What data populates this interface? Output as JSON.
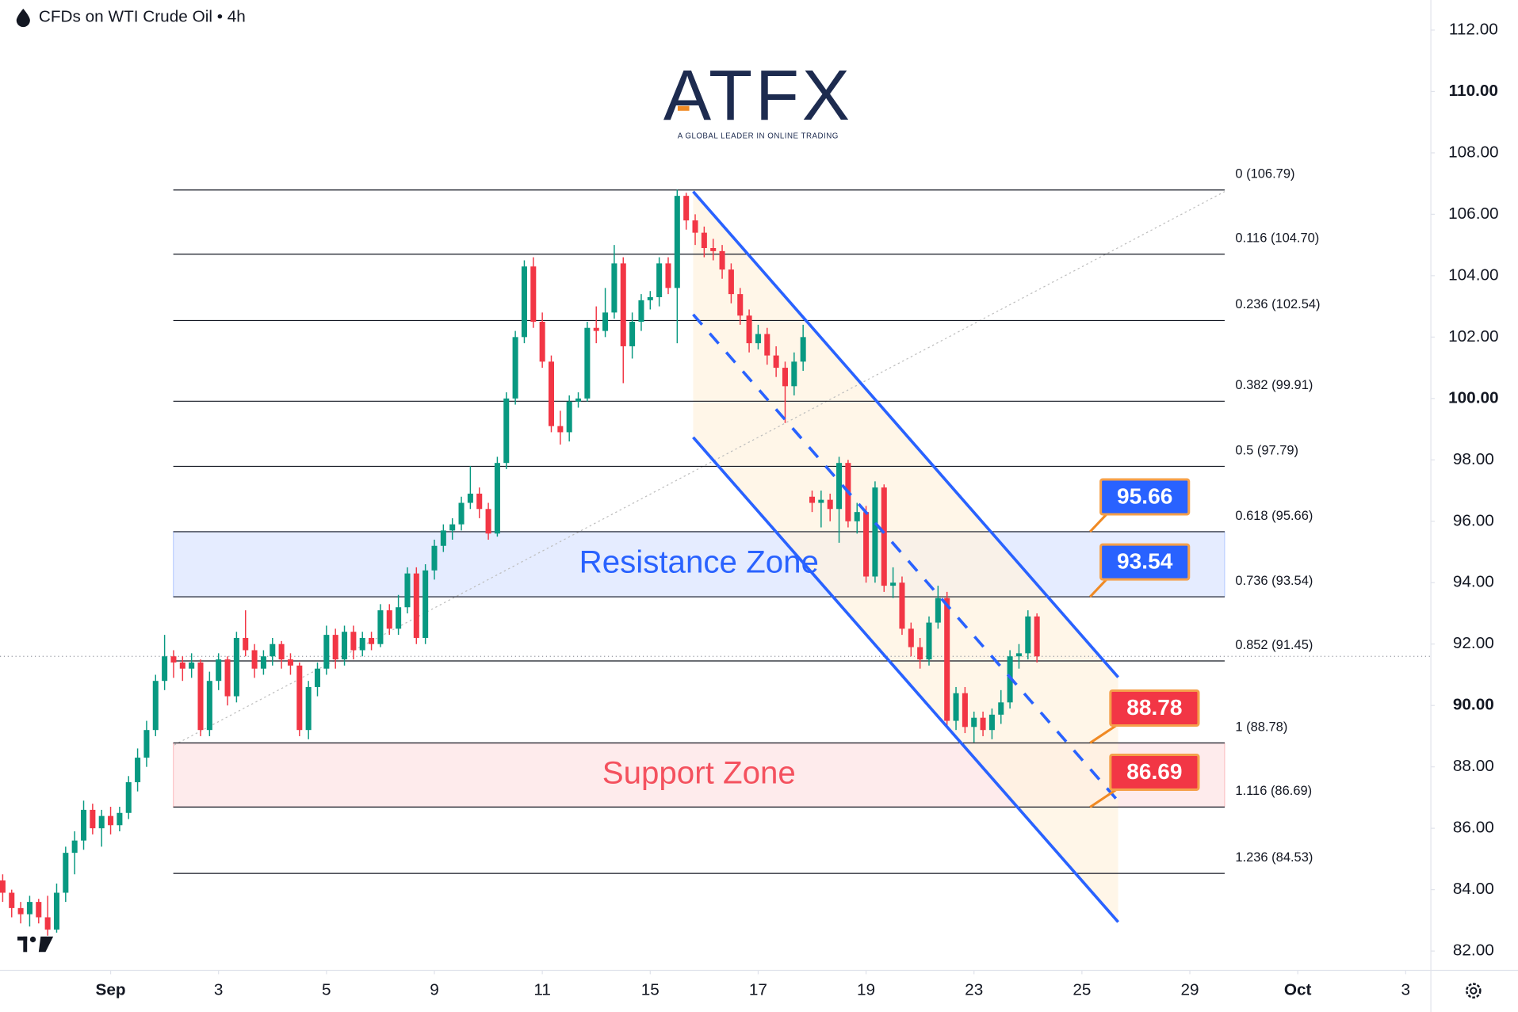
{
  "chart_data": {
    "type": "candlestick",
    "title": "CFDs on WTI Crude Oil • 4h",
    "logo": "ATFX",
    "logo_tagline": "A GLOBAL LEADER IN ONLINE TRADING",
    "up_color": "#089981",
    "down_color": "#f23645",
    "xlim": [
      -0.3,
      158.8
    ],
    "ylim": [
      81.37,
      112.98
    ],
    "xticks": [
      {
        "value": 12,
        "label": "Sep"
      },
      {
        "value": 24,
        "label": "3"
      },
      {
        "value": 36,
        "label": "5"
      },
      {
        "value": 48,
        "label": "9"
      },
      {
        "value": 60,
        "label": "11"
      },
      {
        "value": 72,
        "label": "15"
      },
      {
        "value": 84,
        "label": "17"
      },
      {
        "value": 96,
        "label": "19"
      },
      {
        "value": 108,
        "label": "23"
      },
      {
        "value": 120,
        "label": "25"
      },
      {
        "value": 132,
        "label": "29"
      },
      {
        "value": 144,
        "label": "Oct"
      },
      {
        "value": 156,
        "label": "3"
      }
    ],
    "yticks": [
      {
        "value": 112,
        "label": "112.00"
      },
      {
        "value": 110,
        "label": "110.00"
      },
      {
        "value": 108,
        "label": "108.00"
      },
      {
        "value": 106,
        "label": "106.00"
      },
      {
        "value": 104,
        "label": "104.00"
      },
      {
        "value": 102,
        "label": "102.00"
      },
      {
        "value": 100,
        "label": "100.00"
      },
      {
        "value": 98,
        "label": "98.00"
      },
      {
        "value": 96,
        "label": "96.00"
      },
      {
        "value": 94,
        "label": "94.00"
      },
      {
        "value": 92,
        "label": "92.00"
      },
      {
        "value": 90,
        "label": "90.00"
      },
      {
        "value": 88,
        "label": "88.00"
      },
      {
        "value": 86,
        "label": "86.00"
      },
      {
        "value": 84,
        "label": "84.00"
      },
      {
        "value": 82,
        "label": "82.00"
      }
    ],
    "fib_levels": [
      {
        "value": 106.79,
        "label": "0 (106.79)"
      },
      {
        "value": 104.7,
        "label": "0.116 (104.70)"
      },
      {
        "value": 102.54,
        "label": "0.236 (102.54)"
      },
      {
        "value": 99.91,
        "label": "0.382 (99.91)"
      },
      {
        "value": 97.79,
        "label": "0.5 (97.79)"
      },
      {
        "value": 95.66,
        "label": "0.618 (95.66)"
      },
      {
        "value": 93.54,
        "label": "0.736 (93.54)"
      },
      {
        "value": 91.45,
        "label": "0.852 (91.45)"
      },
      {
        "value": 88.78,
        "label": "1 (88.78)"
      },
      {
        "value": 86.69,
        "label": "1.116 (86.69)"
      },
      {
        "value": 84.53,
        "label": "1.236 (84.53)"
      }
    ],
    "zones": [
      {
        "label": "Resistance Zone",
        "color": "#2962ff"
      },
      {
        "label": "Support Zone",
        "color": "#f23645"
      }
    ],
    "callouts": [
      {
        "value": 95.66,
        "color": "#2962ff"
      },
      {
        "value": 93.54,
        "color": "#2962ff"
      },
      {
        "value": 88.78,
        "color": "#f23645"
      },
      {
        "value": 86.69,
        "color": "#f23645"
      }
    ],
    "x": [
      0,
      1,
      2,
      3,
      4,
      5,
      6,
      7,
      8,
      9,
      10,
      11,
      12,
      13,
      14,
      15,
      16,
      17,
      18,
      19,
      20,
      21,
      22,
      23,
      24,
      25,
      26,
      27,
      28,
      29,
      30,
      31,
      32,
      33,
      34,
      35,
      36,
      37,
      38,
      39,
      40,
      41,
      42,
      43,
      44,
      45,
      46,
      47,
      48,
      49,
      50,
      51,
      52,
      53,
      54,
      55,
      56,
      57,
      58,
      59,
      60,
      61,
      62,
      63,
      64,
      65,
      66,
      67,
      68,
      69,
      70,
      71,
      72,
      73,
      74,
      75,
      76,
      77,
      78,
      79,
      80,
      81,
      82,
      83,
      84,
      85,
      86,
      87,
      88,
      89,
      90,
      91,
      92,
      93,
      94,
      95,
      96,
      97,
      98,
      99,
      100,
      101,
      102,
      103,
      104,
      105,
      106,
      107,
      108,
      109,
      110,
      111,
      112,
      113,
      114,
      115
    ],
    "ohlc": [
      [
        84.3,
        84.5,
        83.6,
        83.9
      ],
      [
        83.9,
        84.0,
        83.1,
        83.4
      ],
      [
        83.4,
        83.6,
        82.9,
        83.2
      ],
      [
        83.2,
        83.8,
        82.8,
        83.6
      ],
      [
        83.6,
        83.7,
        82.9,
        83.1
      ],
      [
        83.1,
        83.8,
        82.5,
        82.7
      ],
      [
        82.7,
        84.2,
        82.6,
        83.9
      ],
      [
        83.9,
        85.4,
        83.6,
        85.2
      ],
      [
        85.2,
        85.9,
        84.5,
        85.6
      ],
      [
        85.6,
        86.9,
        85.3,
        86.6
      ],
      [
        86.6,
        86.8,
        85.8,
        86.0
      ],
      [
        86.0,
        86.6,
        85.4,
        86.4
      ],
      [
        86.4,
        86.7,
        85.8,
        86.1
      ],
      [
        86.1,
        86.7,
        85.9,
        86.5
      ],
      [
        86.5,
        87.7,
        86.3,
        87.5
      ],
      [
        87.5,
        88.6,
        87.2,
        88.3
      ],
      [
        88.3,
        89.5,
        88.0,
        89.2
      ],
      [
        89.2,
        91.0,
        89.0,
        90.8
      ],
      [
        90.8,
        92.3,
        90.5,
        91.6
      ],
      [
        91.6,
        91.8,
        90.9,
        91.4
      ],
      [
        91.4,
        91.6,
        90.8,
        91.2
      ],
      [
        91.2,
        91.7,
        90.9,
        91.4
      ],
      [
        91.4,
        91.5,
        89.0,
        89.2
      ],
      [
        89.2,
        91.1,
        89.0,
        90.8
      ],
      [
        90.8,
        91.7,
        90.5,
        91.5
      ],
      [
        91.5,
        91.6,
        90.0,
        90.3
      ],
      [
        90.3,
        92.4,
        90.1,
        92.2
      ],
      [
        92.2,
        93.1,
        91.6,
        91.8
      ],
      [
        91.8,
        92.0,
        90.9,
        91.2
      ],
      [
        91.2,
        91.8,
        91.0,
        91.6
      ],
      [
        91.6,
        92.2,
        91.3,
        92.0
      ],
      [
        92.0,
        92.1,
        91.2,
        91.5
      ],
      [
        91.5,
        91.7,
        91.0,
        91.3
      ],
      [
        91.3,
        91.4,
        89.0,
        89.2
      ],
      [
        89.2,
        90.8,
        88.9,
        90.6
      ],
      [
        90.6,
        91.4,
        90.3,
        91.2
      ],
      [
        91.2,
        92.6,
        91.0,
        92.3
      ],
      [
        92.3,
        92.5,
        91.2,
        91.5
      ],
      [
        91.5,
        92.6,
        91.3,
        92.4
      ],
      [
        92.4,
        92.6,
        91.5,
        91.8
      ],
      [
        91.8,
        92.4,
        91.6,
        92.2
      ],
      [
        92.2,
        92.4,
        91.8,
        92.0
      ],
      [
        92.0,
        93.3,
        91.9,
        93.1
      ],
      [
        93.1,
        93.3,
        92.3,
        92.5
      ],
      [
        92.5,
        93.6,
        92.3,
        93.2
      ],
      [
        93.2,
        94.5,
        93.0,
        94.3
      ],
      [
        94.3,
        94.5,
        92.0,
        92.2
      ],
      [
        92.2,
        94.6,
        92.0,
        94.4
      ],
      [
        94.4,
        95.4,
        94.1,
        95.2
      ],
      [
        95.2,
        95.9,
        95.0,
        95.7
      ],
      [
        95.7,
        96.1,
        95.4,
        95.9
      ],
      [
        95.9,
        96.8,
        95.7,
        96.6
      ],
      [
        96.6,
        97.8,
        96.4,
        96.9
      ],
      [
        96.9,
        97.1,
        96.1,
        96.4
      ],
      [
        96.4,
        96.6,
        95.4,
        95.6
      ],
      [
        95.6,
        98.1,
        95.5,
        97.9
      ],
      [
        97.9,
        100.2,
        97.7,
        100.0
      ],
      [
        100.0,
        102.2,
        99.8,
        102.0
      ],
      [
        102.0,
        104.5,
        101.8,
        104.3
      ],
      [
        104.3,
        104.6,
        102.3,
        102.5
      ],
      [
        102.5,
        102.8,
        101.0,
        101.2
      ],
      [
        101.2,
        101.4,
        98.9,
        99.1
      ],
      [
        99.1,
        99.6,
        98.5,
        98.9
      ],
      [
        98.9,
        100.1,
        98.6,
        99.9
      ],
      [
        99.9,
        100.2,
        99.7,
        100.0
      ],
      [
        100.0,
        102.5,
        99.9,
        102.3
      ],
      [
        102.3,
        103.0,
        101.8,
        102.2
      ],
      [
        102.2,
        103.6,
        102.0,
        102.8
      ],
      [
        102.8,
        105.0,
        102.6,
        104.4
      ],
      [
        104.4,
        104.6,
        100.5,
        101.7
      ],
      [
        101.7,
        102.8,
        101.3,
        102.5
      ],
      [
        102.5,
        103.4,
        102.2,
        103.2
      ],
      [
        103.2,
        103.5,
        102.9,
        103.3
      ],
      [
        103.3,
        104.6,
        103.0,
        104.4
      ],
      [
        104.4,
        104.6,
        103.4,
        103.6
      ],
      [
        103.6,
        106.8,
        101.8,
        106.6
      ],
      [
        106.6,
        106.7,
        105.5,
        105.8
      ],
      [
        105.8,
        106.0,
        105.0,
        105.4
      ],
      [
        105.4,
        105.6,
        104.6,
        104.9
      ],
      [
        104.9,
        105.2,
        104.5,
        104.8
      ],
      [
        104.8,
        105.0,
        103.9,
        104.2
      ],
      [
        104.2,
        104.4,
        103.1,
        103.4
      ],
      [
        103.4,
        103.6,
        102.4,
        102.7
      ],
      [
        102.7,
        102.9,
        101.5,
        101.8
      ],
      [
        101.8,
        102.4,
        101.6,
        102.1
      ],
      [
        102.1,
        102.3,
        101.1,
        101.4
      ],
      [
        101.4,
        101.7,
        100.7,
        101.0
      ],
      [
        101.0,
        101.2,
        99.2,
        100.4
      ],
      [
        100.4,
        101.5,
        100.1,
        101.2
      ],
      [
        101.2,
        102.4,
        100.9,
        102.0
      ],
      [
        96.8,
        97.0,
        96.3,
        96.6
      ],
      [
        96.6,
        97.0,
        95.8,
        96.7
      ],
      [
        96.7,
        96.9,
        96.0,
        96.4
      ],
      [
        96.4,
        98.1,
        95.3,
        97.9
      ],
      [
        97.9,
        98.0,
        95.8,
        96.0
      ],
      [
        96.0,
        96.6,
        95.6,
        96.3
      ],
      [
        96.3,
        96.5,
        94.0,
        94.2
      ],
      [
        94.2,
        97.3,
        94.0,
        97.1
      ],
      [
        97.1,
        97.2,
        93.7,
        93.9
      ],
      [
        93.9,
        94.5,
        93.5,
        94.0
      ],
      [
        94.0,
        94.2,
        92.3,
        92.5
      ],
      [
        92.5,
        92.7,
        91.6,
        91.9
      ],
      [
        91.9,
        92.2,
        91.2,
        91.5
      ],
      [
        91.5,
        92.9,
        91.3,
        92.7
      ],
      [
        92.7,
        93.9,
        92.5,
        93.5
      ],
      [
        93.5,
        93.7,
        89.3,
        89.5
      ],
      [
        89.5,
        90.6,
        89.2,
        90.4
      ],
      [
        90.4,
        90.6,
        89.1,
        89.3
      ],
      [
        89.3,
        89.8,
        88.8,
        89.6
      ],
      [
        89.6,
        89.8,
        89.0,
        89.2
      ],
      [
        89.2,
        89.9,
        88.9,
        89.7
      ],
      [
        89.7,
        90.5,
        89.4,
        90.1
      ],
      [
        90.1,
        91.8,
        89.9,
        91.6
      ],
      [
        91.6,
        92.0,
        91.2,
        91.7
      ],
      [
        91.7,
        93.1,
        91.5,
        92.9
      ],
      [
        92.9,
        93.0,
        91.4,
        91.6
      ]
    ]
  }
}
